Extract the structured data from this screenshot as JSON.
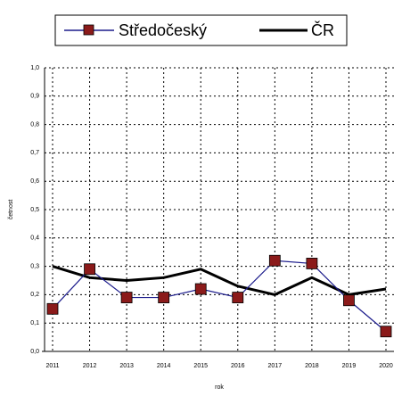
{
  "chart_data": {
    "type": "line",
    "x_label": "rok",
    "y_label": "četnost",
    "categories": [
      "2011",
      "2012",
      "2013",
      "2014",
      "2015",
      "2016",
      "2017",
      "2018",
      "2019",
      "2020"
    ],
    "series": [
      {
        "name": "Středočeský",
        "color": "#1c1c8c",
        "marker_color": "#8b1a1a",
        "values": [
          0.15,
          0.29,
          0.19,
          0.19,
          0.22,
          0.19,
          0.32,
          0.31,
          0.18,
          0.07
        ]
      },
      {
        "name": "ČR",
        "color": "#000000",
        "values": [
          0.3,
          0.26,
          0.25,
          0.26,
          0.29,
          0.23,
          0.2,
          0.26,
          0.2,
          0.22
        ]
      }
    ],
    "ylim": [
      0,
      1
    ],
    "yticks": [
      {
        "value": 0,
        "label": "0,0"
      },
      {
        "value": 0.1,
        "label": "0,1"
      },
      {
        "value": 0.2,
        "label": "0,2"
      },
      {
        "value": 0.3,
        "label": "0,3"
      },
      {
        "value": 0.4,
        "label": "0,4"
      },
      {
        "value": 0.5,
        "label": "0,5"
      },
      {
        "value": 0.6,
        "label": "0,6"
      },
      {
        "value": 0.7,
        "label": "0,7"
      },
      {
        "value": 0.8,
        "label": "0,8"
      },
      {
        "value": 0.9,
        "label": "0,9"
      },
      {
        "value": 1,
        "label": "1,0"
      }
    ],
    "grid": true,
    "legend": "top"
  }
}
